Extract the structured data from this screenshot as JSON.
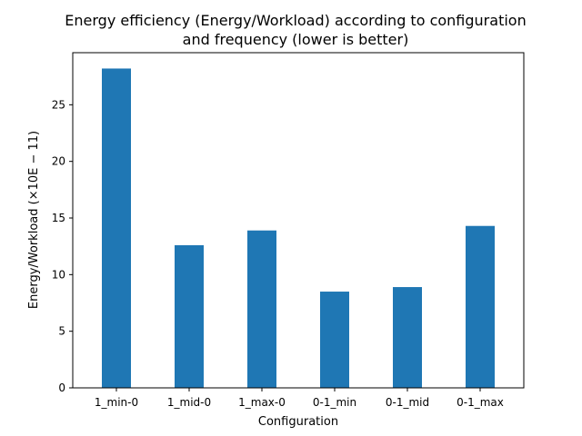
{
  "chart_data": {
    "type": "bar",
    "title_line1": "Energy efficiency (Energy/Workload) according to configuration",
    "title_line2": "and frequency (lower is better)",
    "xlabel": "Configuration",
    "ylabel": "Energy/Workload (×10E − 11)",
    "categories": [
      "1_min-0",
      "1_mid-0",
      "1_max-0",
      "0-1_min",
      "0-1_mid",
      "0-1_max"
    ],
    "values": [
      28.2,
      12.6,
      13.9,
      8.5,
      8.9,
      14.3
    ],
    "ylim": [
      0,
      29.6
    ],
    "yticks": [
      0,
      5,
      10,
      15,
      20,
      25
    ],
    "bar_color": "#1f77b4",
    "grid": false,
    "legend": "none"
  }
}
